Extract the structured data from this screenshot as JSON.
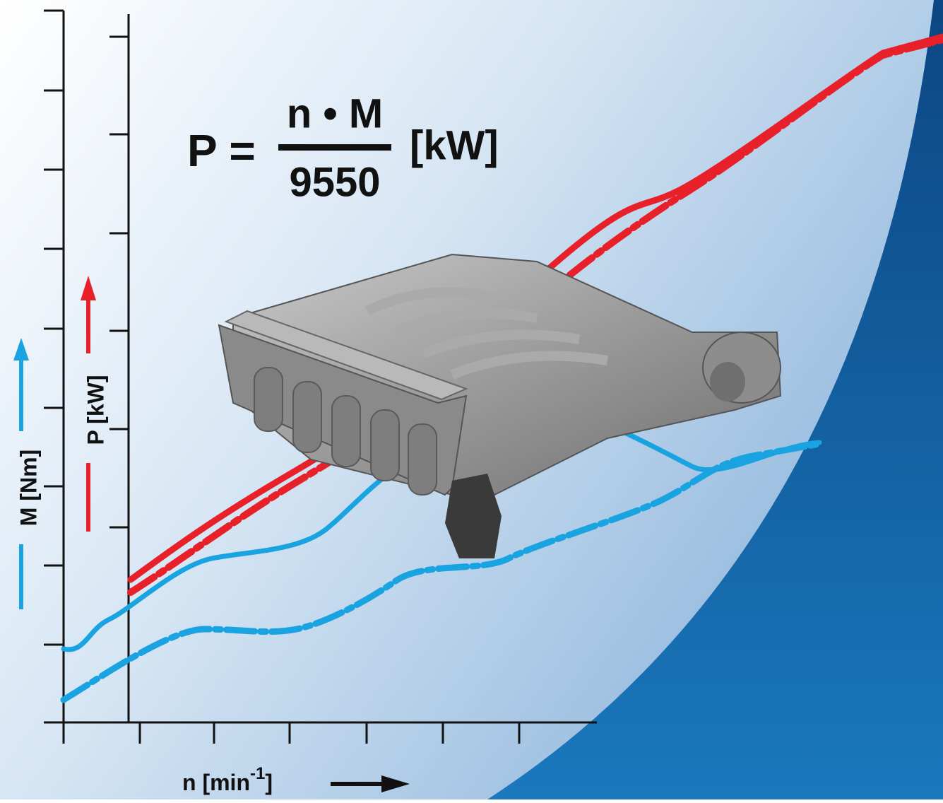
{
  "formula": {
    "lhs": "P =",
    "numerator": "n • M",
    "denominator": "9550",
    "unit": "[kW]"
  },
  "axes": {
    "torque_label": "M [Nm]",
    "power_label": "P [kW]",
    "speed_label": "n [min",
    "speed_exponent": "-1",
    "speed_close": "]"
  }
}
